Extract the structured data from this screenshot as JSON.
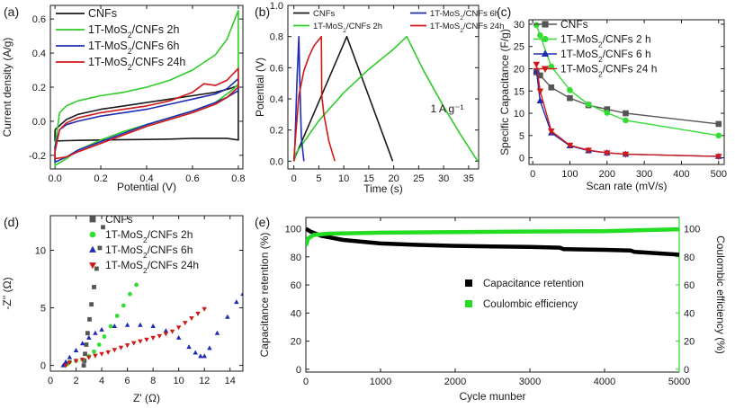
{
  "figure": {
    "panels": [
      "(a)",
      "(b)",
      "(c)",
      "(d)",
      "(e)"
    ]
  },
  "colors": {
    "cnf": "#1a1a1a",
    "h2": "#2ecc28",
    "h6": "#1f2bb4",
    "h24": "#d01818",
    "cnf_marker": "#555555",
    "h2_marker": "#33dd33",
    "cr": "#000000",
    "ce": "#22dd22"
  },
  "chart_data": [
    {
      "id": "a",
      "type": "line",
      "subtype": "cyclic-voltammetry",
      "label": "(a)",
      "xlabel": "Potential (V)",
      "ylabel": "Current density (A/g)",
      "xlim": [
        -0.02,
        0.82
      ],
      "ylim": [
        -0.28,
        0.68
      ],
      "xticks": [
        0.0,
        0.2,
        0.4,
        0.6,
        0.8
      ],
      "xtick_labels": [
        "0.0",
        "0.2",
        "0.4",
        "0.6",
        "0.8"
      ],
      "yticks": [
        -0.2,
        0.0,
        0.2,
        0.4,
        0.6
      ],
      "ytick_labels": [
        "-0.2",
        "0.0",
        "0.2",
        "0.4",
        "0.6"
      ],
      "legend": [
        "CNFs",
        "1T-MoS2/CNFs 2h",
        "1T-MoS2/CNFs 6h",
        "1T-MoS2/CNFs 24h"
      ],
      "legend_position": "top-left",
      "series": [
        {
          "name": "CNFs",
          "color_key": "cnf",
          "x": [
            0.0,
            0.05,
            0.1,
            0.2,
            0.3,
            0.4,
            0.5,
            0.6,
            0.7,
            0.76,
            0.8,
            0.8,
            0.75,
            0.7,
            0.6,
            0.5,
            0.4,
            0.3,
            0.2,
            0.1,
            0.05,
            0.0,
            0.0
          ],
          "y": [
            -0.05,
            0.01,
            0.04,
            0.07,
            0.09,
            0.11,
            0.13,
            0.15,
            0.17,
            0.19,
            0.21,
            -0.11,
            -0.1,
            -0.1,
            -0.1,
            -0.105,
            -0.107,
            -0.108,
            -0.11,
            -0.112,
            -0.114,
            -0.116,
            -0.05
          ]
        },
        {
          "name": "1T-MoS2/CNFs 2h",
          "color_key": "h2",
          "x": [
            0.0,
            0.02,
            0.05,
            0.1,
            0.2,
            0.3,
            0.4,
            0.5,
            0.6,
            0.7,
            0.75,
            0.8,
            0.8,
            0.78,
            0.7,
            0.6,
            0.5,
            0.4,
            0.3,
            0.2,
            0.1,
            0.05,
            0.0,
            0.0
          ],
          "y": [
            -0.15,
            0.05,
            0.09,
            0.12,
            0.15,
            0.17,
            0.2,
            0.24,
            0.3,
            0.39,
            0.48,
            0.65,
            0.22,
            0.19,
            0.11,
            0.06,
            0.02,
            -0.02,
            -0.06,
            -0.11,
            -0.17,
            -0.22,
            -0.26,
            -0.15
          ]
        },
        {
          "name": "1T-MoS2/CNFs 6h",
          "color_key": "h6",
          "x": [
            0.0,
            0.02,
            0.05,
            0.1,
            0.2,
            0.3,
            0.4,
            0.5,
            0.6,
            0.7,
            0.75,
            0.8,
            0.8,
            0.75,
            0.7,
            0.6,
            0.5,
            0.4,
            0.3,
            0.2,
            0.1,
            0.05,
            0.0,
            0.0
          ],
          "y": [
            -0.15,
            -0.05,
            -0.02,
            0.0,
            0.03,
            0.05,
            0.07,
            0.1,
            0.13,
            0.16,
            0.19,
            0.25,
            0.18,
            0.14,
            0.11,
            0.06,
            0.02,
            -0.02,
            -0.07,
            -0.12,
            -0.17,
            -0.21,
            -0.24,
            -0.15
          ]
        },
        {
          "name": "1T-MoS2/CNFs 24h",
          "color_key": "h24",
          "x": [
            0.0,
            0.02,
            0.05,
            0.1,
            0.2,
            0.3,
            0.4,
            0.5,
            0.6,
            0.65,
            0.7,
            0.75,
            0.8,
            0.8,
            0.75,
            0.7,
            0.6,
            0.5,
            0.4,
            0.3,
            0.2,
            0.1,
            0.05,
            0.0,
            0.0
          ],
          "y": [
            -0.18,
            -0.05,
            -0.01,
            0.02,
            0.05,
            0.07,
            0.09,
            0.12,
            0.17,
            0.22,
            0.21,
            0.24,
            0.31,
            0.2,
            0.14,
            0.1,
            0.05,
            0.01,
            -0.03,
            -0.08,
            -0.13,
            -0.18,
            -0.21,
            -0.22,
            -0.18
          ]
        }
      ]
    },
    {
      "id": "b",
      "type": "line",
      "subtype": "galvanostatic-charge-discharge",
      "label": "(b)",
      "xlabel": "Time (s)",
      "ylabel": "Potential (V)",
      "annotation": "1 A g⁻¹",
      "xlim": [
        -1.2,
        37
      ],
      "ylim": [
        -0.05,
        1.0
      ],
      "xticks": [
        0,
        5,
        10,
        15,
        20,
        25,
        30,
        35
      ],
      "xtick_labels": [
        "0",
        "5",
        "10",
        "15",
        "20",
        "25",
        "30",
        "35"
      ],
      "yticks": [
        0.0,
        0.2,
        0.4,
        0.6,
        0.8,
        1.0
      ],
      "ytick_labels": [
        "0.0",
        "0.2",
        "0.4",
        "0.6",
        "0.8",
        "1.0"
      ],
      "legend": [
        "CNFs",
        "1T-MoS2/CNFs 2h",
        "1T-MoS2/CNFs 6h",
        "1T-MoS2/CNFs 24h"
      ],
      "legend_position": "top",
      "series": [
        {
          "name": "CNFs",
          "color_key": "cnf",
          "x": [
            0,
            0.3,
            10.6,
            19.8
          ],
          "y": [
            0.0,
            0.03,
            0.8,
            0.0
          ]
        },
        {
          "name": "1T-MoS2/CNFs 2h",
          "color_key": "h2",
          "x": [
            0,
            0.4,
            5,
            10,
            15,
            20,
            22.6,
            26,
            30,
            33,
            36.8
          ],
          "y": [
            0.0,
            0.05,
            0.26,
            0.44,
            0.59,
            0.72,
            0.8,
            0.58,
            0.35,
            0.19,
            0.0
          ]
        },
        {
          "name": "1T-MoS2/CNFs 6h",
          "color_key": "h6",
          "x": [
            0,
            0.2,
            0.6,
            1.0,
            1.2,
            1.5,
            2.0
          ],
          "y": [
            0.0,
            0.1,
            0.5,
            0.8,
            0.5,
            0.15,
            0.0
          ]
        },
        {
          "name": "1T-MoS2/CNFs 24h",
          "color_key": "h24",
          "x": [
            0,
            0.2,
            1,
            2,
            3,
            4,
            5.5,
            5.6,
            6,
            7,
            8.2
          ],
          "y": [
            0.0,
            0.1,
            0.42,
            0.58,
            0.67,
            0.74,
            0.8,
            0.42,
            0.3,
            0.13,
            0.0
          ]
        }
      ]
    },
    {
      "id": "c",
      "type": "line",
      "subtype": "specific-capacitance-vs-scan-rate",
      "label": "(c)",
      "xlabel": "Scan rate (mV/s)",
      "ylabel": "Specific Capacitance (F/g)",
      "xlim": [
        -10,
        515
      ],
      "ylim": [
        -1.5,
        31
      ],
      "xticks": [
        0,
        100,
        200,
        300,
        400,
        500
      ],
      "xtick_labels": [
        "0",
        "100",
        "200",
        "300",
        "400",
        "500"
      ],
      "yticks": [
        0,
        5,
        10,
        15,
        20,
        25,
        30
      ],
      "ytick_labels": [
        "0",
        "5",
        "10",
        "15",
        "20",
        "25",
        "30"
      ],
      "legend": [
        "CNFs",
        "1T-MoS2/CNFs 2 h",
        "1T-MoS2/CNFs 6 h",
        "1T-MoS2/CNFs 24 h"
      ],
      "legend_position": "top-right",
      "series": [
        {
          "name": "CNFs",
          "color_key": "cnf_marker",
          "marker": "square",
          "x": [
            10,
            20,
            50,
            100,
            150,
            200,
            250,
            500
          ],
          "y": [
            19.2,
            18.5,
            15.8,
            13.4,
            11.8,
            10.9,
            10.0,
            7.6
          ]
        },
        {
          "name": "1T-MoS2/CNFs 2 h",
          "color_key": "h2_marker",
          "marker": "circle",
          "x": [
            10,
            20,
            50,
            100,
            150,
            200,
            250,
            500
          ],
          "y": [
            29.8,
            27.5,
            20.5,
            15.2,
            12.0,
            10.1,
            8.4,
            5.0
          ]
        },
        {
          "name": "1T-MoS2/CNFs 6 h",
          "color_key": "h6",
          "marker": "triangle-up",
          "x": [
            10,
            20,
            50,
            100,
            150,
            200,
            250,
            500
          ],
          "y": [
            19.5,
            12.8,
            5.6,
            2.7,
            1.6,
            1.1,
            0.8,
            0.3
          ]
        },
        {
          "name": "1T-MoS2/CNFs 24 h",
          "color_key": "h24",
          "marker": "triangle-down",
          "x": [
            10,
            20,
            50,
            100,
            150,
            200,
            250,
            500
          ],
          "y": [
            21.0,
            15.0,
            6.0,
            2.8,
            1.7,
            1.1,
            0.8,
            0.3
          ]
        }
      ]
    },
    {
      "id": "d",
      "type": "scatter",
      "subtype": "nyquist-plot",
      "label": "(d)",
      "xlabel": "Z' (Ω)",
      "ylabel": "-Z'' (Ω)",
      "xlim": [
        0,
        15
      ],
      "ylim": [
        -0.5,
        13
      ],
      "xticks": [
        0,
        2,
        4,
        6,
        8,
        10,
        12,
        14
      ],
      "xtick_labels": [
        "0",
        "2",
        "4",
        "6",
        "8",
        "10",
        "12",
        "14"
      ],
      "yticks": [
        0,
        5,
        10
      ],
      "ytick_labels": [
        "0",
        "5",
        "10"
      ],
      "legend": [
        "CNFs",
        "1T-MoS2/CNFs 2h",
        "1T-MoS2/CNFs 6h",
        "1T-MoS2/CNFs 24h"
      ],
      "legend_position": "top-right",
      "series": [
        {
          "name": "CNFs",
          "color_key": "cnf_marker",
          "marker": "square",
          "x": [
            2.6,
            2.65,
            2.7,
            2.8,
            2.9,
            3.05,
            3.2,
            3.4,
            3.6,
            3.85,
            4.1
          ],
          "y": [
            0.0,
            0.4,
            1.0,
            1.8,
            2.8,
            4.0,
            5.3,
            6.8,
            8.4,
            10.2,
            12.0
          ]
        },
        {
          "name": "1T-MoS2/CNFs 2h",
          "color_key": "h2_marker",
          "marker": "circle",
          "x": [
            1.3,
            1.5,
            2.0,
            2.5,
            3.0,
            3.4,
            3.8,
            4.2,
            4.7,
            5.2,
            5.7,
            6.2,
            6.7
          ],
          "y": [
            0.1,
            0.3,
            0.4,
            0.5,
            0.8,
            1.2,
            1.8,
            2.5,
            3.4,
            4.3,
            5.2,
            6.2,
            7.0
          ]
        },
        {
          "name": "1T-MoS2/CNFs 6h",
          "color_key": "h6",
          "marker": "triangle-up",
          "x": [
            1.0,
            1.2,
            1.5,
            2.0,
            2.5,
            3.0,
            3.5,
            4.0,
            5.0,
            6.0,
            7.0,
            8.0,
            9.0,
            10.0,
            10.8,
            11.3,
            11.7,
            12.0,
            12.4,
            13.0,
            13.8,
            14.5,
            15.0
          ],
          "y": [
            0.0,
            0.3,
            0.7,
            1.3,
            1.9,
            2.4,
            2.8,
            3.1,
            3.4,
            3.5,
            3.5,
            3.4,
            3.0,
            2.4,
            1.6,
            1.1,
            0.8,
            0.8,
            1.5,
            2.8,
            4.2,
            5.5,
            6.2
          ]
        },
        {
          "name": "1T-MoS2/CNFs 24h",
          "color_key": "h24",
          "marker": "triangle-down",
          "x": [
            1.2,
            1.5,
            2.0,
            2.5,
            3.0,
            3.5,
            4.0,
            4.5,
            5.0,
            5.5,
            6.0,
            6.5,
            7.0,
            7.5,
            8.0,
            8.5,
            9.0,
            9.5,
            10.0,
            10.5,
            11.0,
            11.5,
            12.0
          ],
          "y": [
            0.0,
            0.25,
            0.4,
            0.5,
            0.7,
            0.85,
            1.0,
            1.15,
            1.35,
            1.55,
            1.75,
            1.95,
            2.1,
            2.25,
            2.4,
            2.55,
            2.75,
            2.95,
            3.3,
            3.7,
            4.1,
            4.5,
            4.9
          ]
        }
      ]
    },
    {
      "id": "e",
      "type": "line",
      "subtype": "cycling-stability",
      "label": "(e)",
      "xlabel": "Cycle munber",
      "ylabel": "Capacitance retention (%)",
      "y2label": "Coulombic efficiency (%)",
      "xlim": [
        0,
        5000
      ],
      "ylim": [
        -2,
        108
      ],
      "y2lim": [
        -2,
        108
      ],
      "xticks": [
        0,
        1000,
        2000,
        3000,
        4000,
        5000
      ],
      "xtick_labels": [
        "0",
        "1000",
        "2000",
        "3000",
        "4000",
        "5000"
      ],
      "yticks": [
        0,
        20,
        40,
        60,
        80,
        100
      ],
      "ytick_labels": [
        "0",
        "20",
        "40",
        "60",
        "80",
        "100"
      ],
      "legend": [
        "Capacitance retention",
        "Coulombic efficiency"
      ],
      "legend_position": "center-right",
      "series": [
        {
          "name": "Capacitance retention",
          "color_key": "cr",
          "axis": "left",
          "x": [
            0,
            60,
            200,
            500,
            1000,
            1500,
            2000,
            2500,
            3000,
            3400,
            3450,
            3500,
            4000,
            4350,
            4400,
            4500,
            5000
          ],
          "y": [
            100,
            98,
            95,
            92,
            89.5,
            88.5,
            87.8,
            87.4,
            87.0,
            86.5,
            85.5,
            85.4,
            85.0,
            84.5,
            83.5,
            83.2,
            81.5
          ]
        },
        {
          "name": "Coulombic efficiency",
          "color_key": "ce",
          "axis": "right",
          "x": [
            0,
            30,
            100,
            300,
            1000,
            2000,
            3000,
            4000,
            4500,
            5000
          ],
          "y": [
            88,
            93,
            95.5,
            96.5,
            97.2,
            97.6,
            98.0,
            98.3,
            99.0,
            99.6
          ]
        }
      ]
    }
  ]
}
